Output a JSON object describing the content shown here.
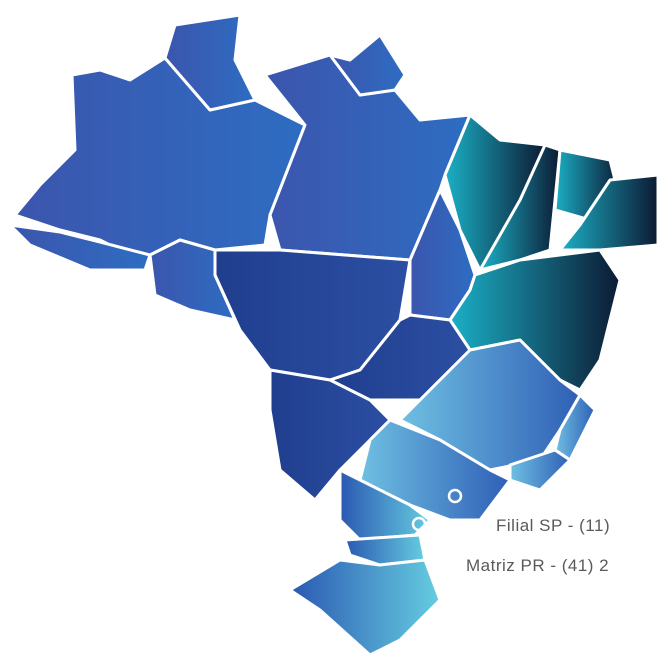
{
  "labels": {
    "filial_sp": "Filial SP - (11)",
    "matriz_pr": "Matriz PR - (41) 2"
  }
}
